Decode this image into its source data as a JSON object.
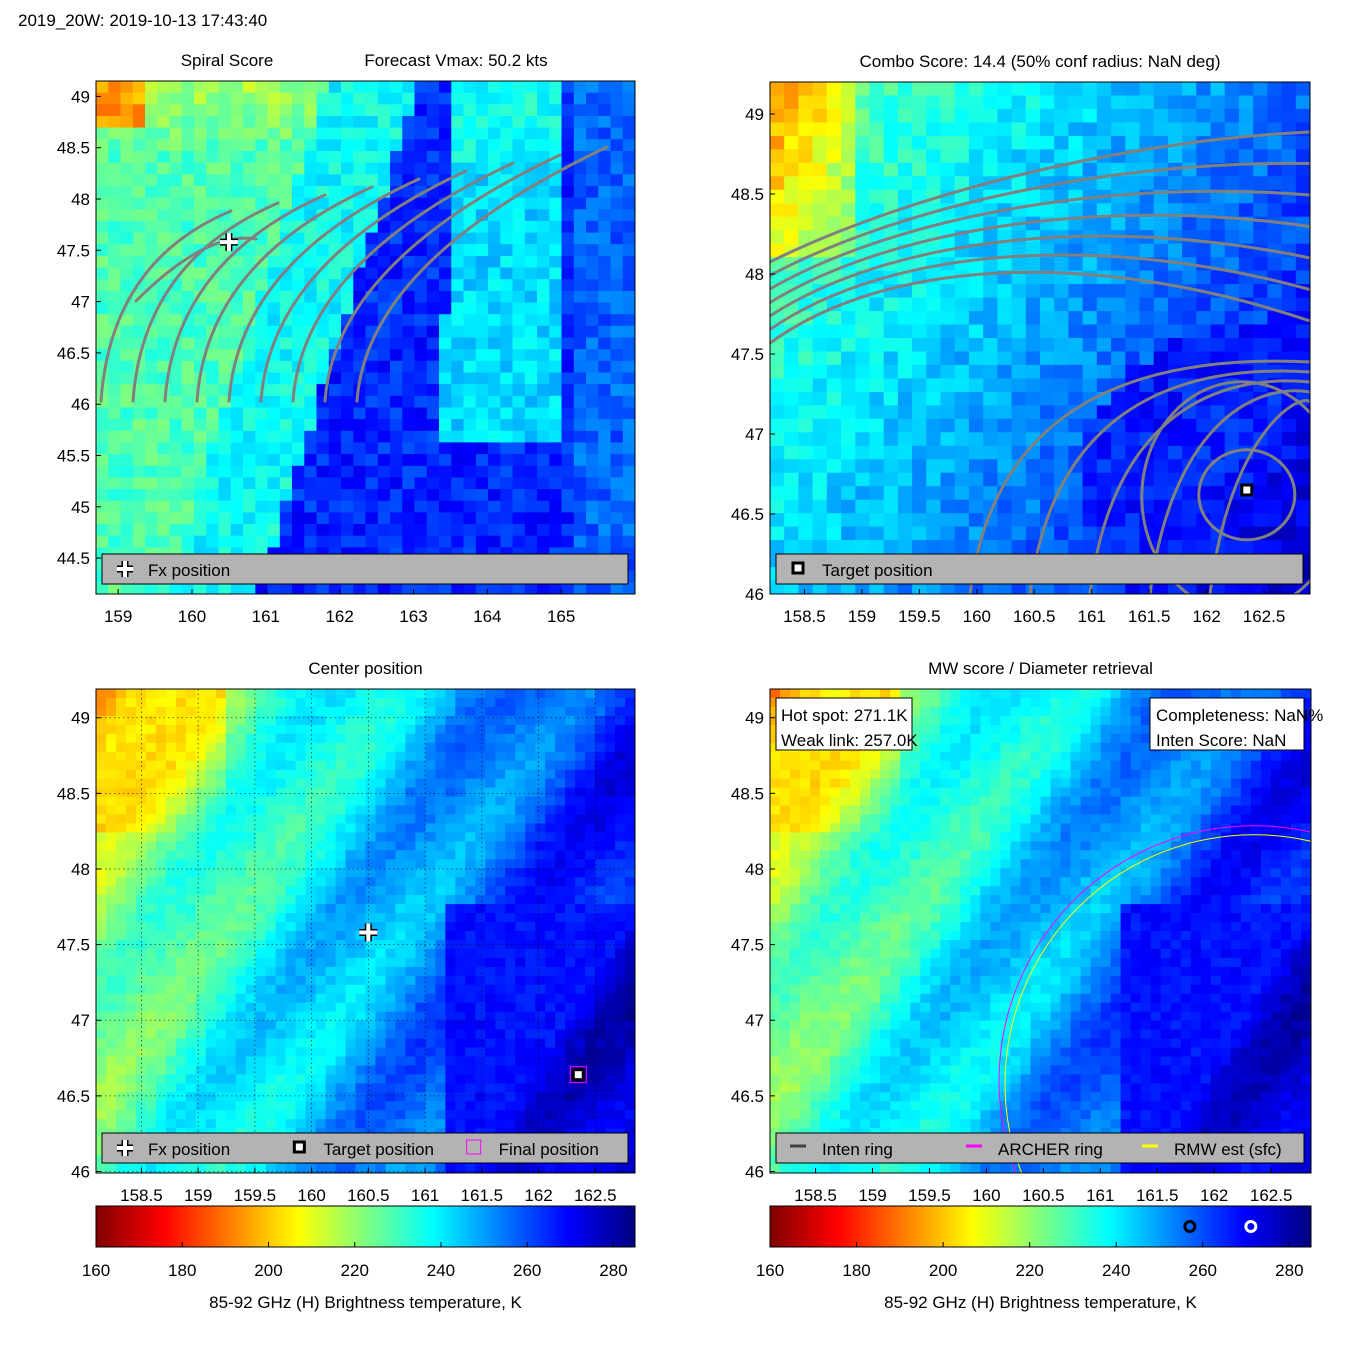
{
  "page": {
    "header": "2019_20W: 2019-10-13 17:43:40"
  },
  "colors": {
    "colormap": [
      "#7f0000",
      "#ff0000",
      "#ff7f00",
      "#ffff00",
      "#7fff7f",
      "#00ffff",
      "#007fff",
      "#0000ff",
      "#00007f"
    ],
    "contour": "#808080",
    "legend_bg": "#b3b3b3",
    "inten_ring": "#404040",
    "archer_ring": "#ff00ff",
    "rmw_ring": "#ffff00"
  },
  "chart_data": [
    {
      "id": "spiral",
      "type": "heatmap",
      "title_left": "Spiral Score",
      "title_right": "Forecast Vmax: 50.2 kts",
      "xlim": [
        158.7,
        166.0
      ],
      "ylim": [
        44.15,
        49.15
      ],
      "xticks": [
        159,
        160,
        161,
        162,
        163,
        164,
        165
      ],
      "yticks": [
        44.5,
        45,
        45.5,
        46,
        46.5,
        47,
        47.5,
        48,
        48.5,
        49
      ],
      "markers": [
        {
          "kind": "plus",
          "x": 160.5,
          "y": 47.58
        }
      ],
      "legend": [
        {
          "kind": "plus",
          "label": "Fx position"
        }
      ]
    },
    {
      "id": "combo",
      "type": "heatmap",
      "title": "Combo Score: 14.4  (50% conf radius: NaN deg)",
      "xlim": [
        158.2,
        162.9
      ],
      "ylim": [
        46.0,
        49.2
      ],
      "xticks": [
        158.5,
        159,
        159.5,
        160,
        160.5,
        161,
        161.5,
        162,
        162.5
      ],
      "yticks": [
        46,
        46.5,
        47,
        47.5,
        48,
        48.5,
        49
      ],
      "markers": [
        {
          "kind": "square",
          "x": 162.35,
          "y": 46.65
        }
      ],
      "legend": [
        {
          "kind": "square",
          "label": "Target position"
        }
      ]
    },
    {
      "id": "center",
      "type": "heatmap",
      "title": "Center position",
      "xlim": [
        158.1,
        162.85
      ],
      "ylim": [
        45.99,
        49.19
      ],
      "xticks": [
        158.5,
        159,
        159.5,
        160,
        160.5,
        161,
        161.5,
        162,
        162.5
      ],
      "yticks": [
        46,
        46.5,
        47,
        47.5,
        48,
        48.5,
        49
      ],
      "grid": true,
      "markers": [
        {
          "kind": "plus",
          "x": 160.5,
          "y": 47.58
        },
        {
          "kind": "square",
          "x": 162.35,
          "y": 46.64
        },
        {
          "kind": "magenta-square",
          "x": 162.35,
          "y": 46.64
        }
      ],
      "legend": [
        {
          "kind": "plus",
          "label": "Fx position"
        },
        {
          "kind": "square",
          "label": "Target position"
        },
        {
          "kind": "magenta-square",
          "label": "Final position"
        }
      ]
    },
    {
      "id": "mwscore",
      "type": "heatmap",
      "title": "MW score / Diameter retrieval",
      "xlim": [
        158.1,
        162.85
      ],
      "ylim": [
        45.99,
        49.19
      ],
      "xticks": [
        158.5,
        159,
        159.5,
        160,
        160.5,
        161,
        161.5,
        162,
        162.5
      ],
      "yticks": [
        46,
        46.5,
        47,
        47.5,
        48,
        48.5,
        49
      ],
      "annotations": {
        "left": [
          "Hot spot: 271.1K",
          "Weak link: 257.0K"
        ],
        "right": [
          "Completeness: NaN%",
          "Inten Score: NaN"
        ]
      },
      "legend": [
        {
          "kind": "inten-line",
          "label": "Inten ring"
        },
        {
          "kind": "archer-line",
          "label": "ARCHER ring"
        },
        {
          "kind": "rmw-line",
          "label": "RMW est (sfc)"
        }
      ]
    }
  ],
  "colorbars": [
    {
      "id": "cb-left",
      "range": [
        160,
        285
      ],
      "ticks": [
        160,
        180,
        200,
        220,
        240,
        260,
        280
      ],
      "label": "85-92 GHz (H) Brightness temperature, K"
    },
    {
      "id": "cb-right",
      "range": [
        160,
        285
      ],
      "ticks": [
        160,
        180,
        200,
        220,
        240,
        260,
        280
      ],
      "label": "85-92 GHz (H) Brightness temperature, K",
      "markers": [
        {
          "kind": "black-ring",
          "value": 257.0
        },
        {
          "kind": "white-ring",
          "value": 271.1
        }
      ]
    }
  ]
}
